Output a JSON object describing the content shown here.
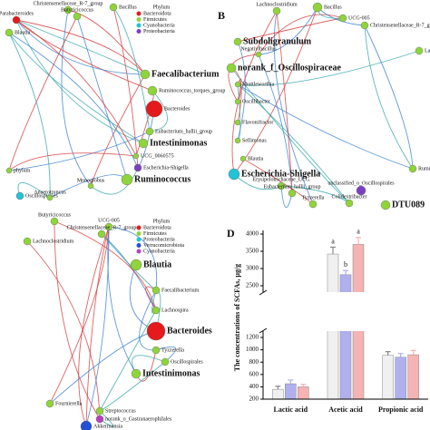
{
  "panels": [
    {
      "letter": null,
      "legend": {
        "title": "Phylum",
        "items": [
          {
            "label": "Bacteroidota",
            "color": "#e41a1c"
          },
          {
            "label": "Firmicutes",
            "color": "#8fd43a"
          },
          {
            "label": "Cyanobacteria",
            "color": "#22c3d6"
          },
          {
            "label": "Proteobacteria",
            "color": "#7b3fc4"
          }
        ]
      },
      "nodes": [
        {
          "label": "Christensenellaceae_R-7_group",
          "color": "#8fd43a"
        },
        {
          "label": "Butyricicoccus",
          "color": "#8fd43a"
        },
        {
          "label": "Bacillus",
          "color": "#8fd43a"
        },
        {
          "label": "Parabacteroides",
          "color": "#e41a1c"
        },
        {
          "label": "Blautia",
          "color": "#8fd43a"
        },
        {
          "label": "Faecalibacterium",
          "color": "#8fd43a"
        },
        {
          "label": "Ruminococcus_torques_group",
          "color": "#8fd43a"
        },
        {
          "label": "Bacteroides",
          "color": "#e41a1c"
        },
        {
          "label": "Eubacterium_hallii_group",
          "color": "#8fd43a"
        },
        {
          "label": "Intestinimonas",
          "color": "#8fd43a"
        },
        {
          "label": "UCG_0060575",
          "color": "#8fd43a"
        },
        {
          "label": "Escherichia-Shigella",
          "color": "#7b3fc4"
        },
        {
          "label": "Ruminococcus",
          "color": "#8fd43a"
        },
        {
          "label": "Monoglobus",
          "color": "#8fd43a"
        },
        {
          "label": "Oscillospirales",
          "color": "#22c3d6"
        },
        {
          "label": "Anaerotruncus",
          "color": "#8fd43a"
        },
        {
          "label": "phylum",
          "color": "#8fd43a"
        }
      ]
    },
    {
      "letter": "B",
      "legend": null,
      "nodes": [
        {
          "label": "Lachnoclostridium",
          "color": "#8fd43a"
        },
        {
          "label": "Bacillus",
          "color": "#8fd43a"
        },
        {
          "label": "UCG-005",
          "color": "#8fd43a"
        },
        {
          "label": "Christensenellaceae_R-7_group",
          "color": "#8fd43a"
        },
        {
          "label": "Subdoligranulum",
          "color": "#8fd43a"
        },
        {
          "label": "Negativibacillus",
          "color": "#8fd43a"
        },
        {
          "label": "norank_f_Oscillospiraceae",
          "color": "#8fd43a"
        },
        {
          "label": "Shuttleworthia",
          "color": "#8fd43a"
        },
        {
          "label": "Oscillibacter",
          "color": "#8fd43a"
        },
        {
          "label": "Flavonifractor",
          "color": "#8fd43a"
        },
        {
          "label": "Sellimonas",
          "color": "#8fd43a"
        },
        {
          "label": "Blautia",
          "color": "#8fd43a"
        },
        {
          "label": "Escherichia-Shigella",
          "color": "#22c3d6"
        },
        {
          "label": "Erysipelotrichaceae_UCG",
          "color": "#8fd43a"
        },
        {
          "label": "Eubacterium_hallii_group",
          "color": "#8fd43a"
        },
        {
          "label": "Tyzzerella",
          "color": "#8fd43a"
        },
        {
          "label": "Colidextribacter",
          "color": "#8fd43a"
        },
        {
          "label": "unclassified_o_Oscillospirales",
          "color": "#7b3fc4"
        },
        {
          "label": "DTU089",
          "color": "#8fd43a"
        },
        {
          "label": "Ruminococ",
          "color": "#8fd43a"
        },
        {
          "label": "Lachno",
          "color": "#8fd43a"
        }
      ]
    },
    {
      "letter": null,
      "legend": {
        "title": "Phylum",
        "items": [
          {
            "label": "Bacteroidota",
            "color": "#e41a1c"
          },
          {
            "label": "Firmicutes",
            "color": "#8fd43a"
          },
          {
            "label": "Proteobacteria",
            "color": "#22c3d6"
          },
          {
            "label": "Verrucomicrobiota",
            "color": "#2450d8"
          },
          {
            "label": "Cyanobacteria",
            "color": "#b73fc4"
          }
        ]
      },
      "nodes": [
        {
          "label": "Butyricicoccus",
          "color": "#8fd43a"
        },
        {
          "label": "UCG-005",
          "color": "#8fd43a"
        },
        {
          "label": "Christensenellaceae_R-7_group",
          "color": "#8fd43a"
        },
        {
          "label": "Lachnoclostridium",
          "color": "#8fd43a"
        },
        {
          "label": "Blautia",
          "color": "#8fd43a"
        },
        {
          "label": "Faecalibacterium",
          "color": "#8fd43a"
        },
        {
          "label": "Lachnospira",
          "color": "#8fd43a"
        },
        {
          "label": "Bacteroides",
          "color": "#e41a1c"
        },
        {
          "label": "Tyzzerella",
          "color": "#8fd43a"
        },
        {
          "label": "Oscillospirales",
          "color": "#8fd43a"
        },
        {
          "label": "Intestinimonas",
          "color": "#8fd43a"
        },
        {
          "label": "Fournierella",
          "color": "#8fd43a"
        },
        {
          "label": "Streptococcus",
          "color": "#8fd43a"
        },
        {
          "label": "norank_o_Gastranaerophilales",
          "color": "#b73fc4"
        },
        {
          "label": "Akkermansia",
          "color": "#2450d8"
        }
      ]
    }
  ],
  "chart_data": {
    "type": "bar",
    "letter": "D",
    "ylabel": "The concentrations of SCFAs, μg/g",
    "categories": [
      "Lactic acid",
      "Acetic acid",
      "Propionic acid"
    ],
    "series": [
      {
        "color": "#f0f0f0",
        "values": [
          360,
          3420,
          910
        ],
        "errors": [
          50,
          200,
          60
        ],
        "letters": [
          null,
          "a",
          null
        ]
      },
      {
        "color": "#b0b0ef",
        "values": [
          450,
          2820,
          880
        ],
        "errors": [
          60,
          120,
          60
        ],
        "letters": [
          null,
          "b",
          null
        ]
      },
      {
        "color": "#f6b3b3",
        "values": [
          400,
          3700,
          920
        ],
        "errors": [
          40,
          200,
          70
        ],
        "letters": [
          null,
          "a",
          null
        ]
      }
    ],
    "ylim": [
      200,
      4000
    ],
    "ybreak": [
      1200,
      2500
    ],
    "yticks": [
      200,
      400,
      600,
      800,
      1000,
      1200,
      2500,
      3000,
      3500,
      4000
    ]
  }
}
